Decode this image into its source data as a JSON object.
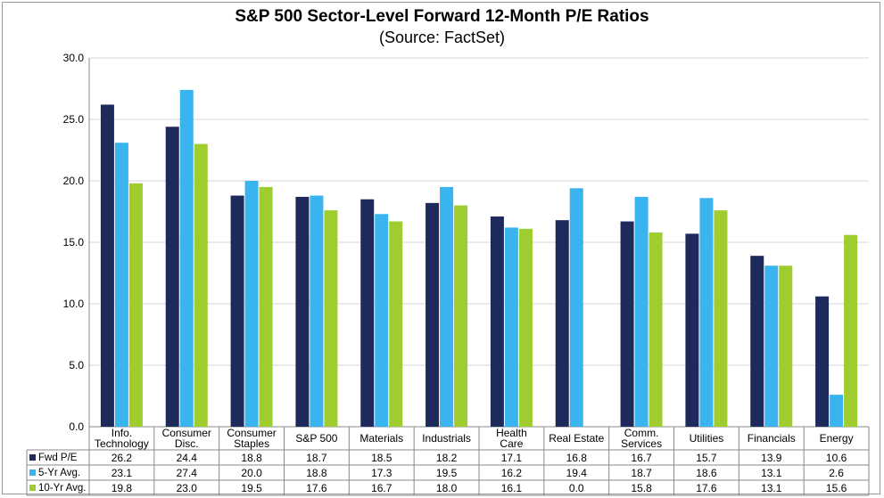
{
  "chart_data": {
    "type": "bar",
    "title": "S&P 500 Sector-Level Forward 12-Month P/E Ratios",
    "subtitle": "(Source: FactSet)",
    "categories": [
      [
        "Info.",
        "Technology"
      ],
      [
        "Consumer",
        "Disc."
      ],
      [
        "Consumer",
        "Staples"
      ],
      [
        "S&P 500"
      ],
      [
        "Materials"
      ],
      [
        "Industrials"
      ],
      [
        "Health",
        "Care"
      ],
      [
        "Real Estate"
      ],
      [
        "Comm.",
        "Services"
      ],
      [
        "Utilities"
      ],
      [
        "Financials"
      ],
      [
        "Energy"
      ]
    ],
    "series": [
      {
        "name": "Fwd P/E",
        "color": "#1f2a5c",
        "values": [
          26.2,
          24.4,
          18.8,
          18.7,
          18.5,
          18.2,
          17.1,
          16.8,
          16.7,
          15.7,
          13.9,
          10.6
        ]
      },
      {
        "name": "5-Yr Avg.",
        "color": "#3ab4ee",
        "values": [
          23.1,
          27.4,
          20.0,
          18.8,
          17.3,
          19.5,
          16.2,
          19.4,
          18.7,
          18.6,
          13.1,
          2.6
        ]
      },
      {
        "name": "10-Yr Avg.",
        "color": "#9fcc2e",
        "values": [
          19.8,
          23.0,
          19.5,
          17.6,
          16.7,
          18.0,
          16.1,
          0.0,
          15.8,
          17.6,
          13.1,
          15.6
        ]
      }
    ],
    "value_labels": [
      [
        "26.2",
        "24.4",
        "18.8",
        "18.7",
        "18.5",
        "18.2",
        "17.1",
        "16.8",
        "16.7",
        "15.7",
        "13.9",
        "10.6"
      ],
      [
        "23.1",
        "27.4",
        "20.0",
        "18.8",
        "17.3",
        "19.5",
        "16.2",
        "19.4",
        "18.7",
        "18.6",
        "13.1",
        "2.6"
      ],
      [
        "19.8",
        "23.0",
        "19.5",
        "17.6",
        "16.7",
        "18.0",
        "16.1",
        "0.0",
        "15.8",
        "17.6",
        "13.1",
        "15.6"
      ]
    ],
    "ylim": [
      0,
      30
    ],
    "yticks": [
      "0.0",
      "5.0",
      "10.0",
      "15.0",
      "20.0",
      "25.0",
      "30.0"
    ],
    "ytick_values": [
      0,
      5,
      10,
      15,
      20,
      25,
      30
    ],
    "grid": true,
    "legend": "data-table"
  }
}
